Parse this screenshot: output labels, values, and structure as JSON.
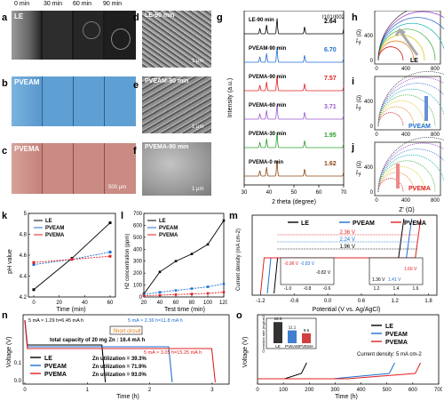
{
  "panels": {
    "a": "a",
    "b": "b",
    "c": "c",
    "d": "d",
    "e": "e",
    "f": "f",
    "g": "g",
    "h": "h",
    "i": "i",
    "j": "j",
    "k": "k",
    "l": "l",
    "m": "m",
    "n": "n",
    "o": "o"
  },
  "time_labels": [
    "0 min",
    "30 min",
    "60 min",
    "90 min"
  ],
  "row_labels": {
    "a": "LE",
    "b": "PVEAM",
    "c": "PVEMA"
  },
  "sem_labels": {
    "d": "LE-90 min",
    "e": "PVEAM-90 min",
    "f": "PVEMA-90 min"
  },
  "scale_bars": {
    "d": "1 μm",
    "e": "1 μm",
    "f": "1 μm",
    "c": "500 μm"
  },
  "colors": {
    "LE": "#000000",
    "PVEAM": "#1f6fd1",
    "PVEMA": "#e02020",
    "purple": "#9b59d0",
    "green": "#2ca02c",
    "brown": "#8b4513"
  },
  "chart_data": [
    {
      "id": "g",
      "type": "line",
      "xlabel": "2 theta (degree)",
      "ylabel": "Intensity (a.u.)",
      "xlim": [
        30,
        70
      ],
      "x_ticks": [
        30,
        40,
        50,
        60,
        70
      ],
      "ratio_header": "I101/I002",
      "series": [
        {
          "name": "LE-90 min",
          "ratio": "2.64",
          "color": "#000000"
        },
        {
          "name": "PVEAM-90 min",
          "ratio": "6.70",
          "color": "#1f6fd1"
        },
        {
          "name": "PVEMA-90 min",
          "ratio": "7.57",
          "color": "#e02020"
        },
        {
          "name": "PVEMA-60 min",
          "ratio": "3.71",
          "color": "#9b59d0"
        },
        {
          "name": "PVEMA-30 min",
          "ratio": "1.95",
          "color": "#2ca02c"
        },
        {
          "name": "PVEMA-0 min",
          "ratio": "1.62",
          "color": "#8b4513"
        }
      ]
    },
    {
      "id": "h-j",
      "type": "line",
      "xlabel": "Z' (Ω)",
      "ylabel": "-Z'' (Ω)",
      "x_ticks": [
        0,
        400,
        800
      ],
      "y_ticks": [
        0,
        400
      ],
      "labels": {
        "h": "LE",
        "i": "PVEAM",
        "j": "PVEMA"
      }
    },
    {
      "id": "k",
      "type": "line",
      "xlabel": "Time (min)",
      "ylabel": "pH value",
      "xlim": [
        0,
        60
      ],
      "ylim": [
        4.2,
        5.0
      ],
      "x_ticks": [
        0,
        20,
        40,
        60
      ],
      "y_ticks": [
        4.2,
        4.4,
        4.6,
        4.8,
        5.0
      ],
      "x": [
        0,
        30,
        60
      ],
      "series": [
        {
          "name": "LE",
          "values": [
            4.27,
            4.57,
            4.91
          ]
        },
        {
          "name": "PVEAM",
          "values": [
            4.51,
            4.56,
            4.63
          ]
        },
        {
          "name": "PVEMA",
          "values": [
            4.53,
            4.56,
            4.59
          ]
        }
      ]
    },
    {
      "id": "l",
      "type": "line",
      "xlabel": "Test time (min)",
      "ylabel": "H2 concentration (ppm)",
      "xlim": [
        20,
        120
      ],
      "ylim": [
        0,
        700
      ],
      "x_ticks": [
        20,
        40,
        60,
        80,
        100,
        120
      ],
      "y_ticks": [
        0,
        100,
        200,
        300,
        400,
        500,
        600,
        700
      ],
      "x": [
        20,
        40,
        60,
        80,
        100,
        120
      ],
      "series": [
        {
          "name": "LE",
          "values": [
            25,
            210,
            300,
            360,
            440,
            640
          ]
        },
        {
          "name": "PVEAM",
          "values": [
            20,
            40,
            55,
            70,
            85,
            110
          ]
        },
        {
          "name": "PVEMA",
          "values": [
            10,
            15,
            20,
            25,
            30,
            40
          ]
        }
      ]
    },
    {
      "id": "m",
      "type": "line",
      "xlabel": "Potential (V vs. Ag/AgCl)",
      "ylabel": "Current density (mA cm-2)",
      "x_ticks": [
        -1.2,
        -0.6,
        0.0,
        0.6,
        1.2,
        1.8
      ],
      "x_tick_labels": [
        "-1.2",
        "-0.6",
        "0.0",
        "0.6",
        "1.2",
        "1.8"
      ],
      "series_names": [
        "LE",
        "PVEAM",
        "PVEMA"
      ],
      "windows": [
        {
          "label": "2.36 V",
          "color": "#e02020"
        },
        {
          "label": "2.24 V",
          "color": "#1f6fd1"
        },
        {
          "label": "1.96 V",
          "color": "#000000"
        }
      ],
      "inset_left": {
        "labels": [
          "-0.96 V",
          "-0.83 V",
          "-0.82 V"
        ],
        "x_ticks": [
          "-1.0",
          "-0.8",
          "-0.6"
        ],
        "y_ticks": [
          "-0.1",
          "-0.2",
          "-0.3",
          "-0.4"
        ]
      },
      "inset_right": {
        "labels": [
          "1.36 V",
          "1.41 V",
          "1.66 V"
        ],
        "x_ticks": [
          "1.2",
          "1.4",
          "1.6"
        ],
        "y_ticks": [
          "0.3",
          "0.2",
          "0.1"
        ]
      }
    },
    {
      "id": "n",
      "type": "line",
      "xlabel": "Time (h)",
      "ylabel": "Voltage (V)",
      "x_ticks": [
        0,
        1,
        2,
        3
      ],
      "y_ticks": [
        "0.0",
        "0.1"
      ],
      "annotations": [
        "5 mA × 1.29 h=6.45 mA h",
        "5 mA × 2.36 h=11.8 mA h",
        "5 mA × 3.05 h=15.25 mA h",
        "Short circuit",
        "total capacity of 20 mg Zn : 16.4 mA h"
      ],
      "series": [
        {
          "name": "LE",
          "util": "Zn utilization = 39.3%",
          "end_h": 1.29
        },
        {
          "name": "PVEAM",
          "util": "Zn utilization = 71.9%",
          "end_h": 2.36
        },
        {
          "name": "PVEMA",
          "util": "Zn utilization = 93.0%",
          "end_h": 3.05
        }
      ]
    },
    {
      "id": "o",
      "type": "line",
      "xlabel": "Time (h)",
      "ylabel": "Voltage (V)",
      "x_ticks": [
        0,
        100,
        200,
        300,
        400,
        500,
        600,
        700
      ],
      "annotation": "Current density: 5 mA cm-2",
      "series": [
        {
          "name": "LE",
          "end_h": 190
        },
        {
          "name": "PVEAM",
          "end_h": 530
        },
        {
          "name": "PVEMA",
          "end_h": 630
        }
      ],
      "inset": {
        "type": "bar",
        "ylabel": "Corrosion rate (mg/cm2)",
        "categories": [
          "LE",
          "PVEAM",
          "PVEMA"
        ],
        "values": [
          18.3,
          11.1,
          8.6
        ],
        "value_labels": [
          "18.3",
          "11.1",
          "8.6"
        ]
      }
    }
  ]
}
